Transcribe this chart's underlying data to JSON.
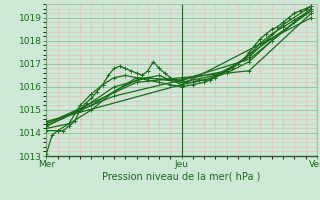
{
  "bg_color": "#cde8d5",
  "grid_minor_color": "#e8b8b8",
  "grid_major_color": "#99bb99",
  "line_color": "#1a6b1a",
  "axis_line_color": "#2a5a2a",
  "xlabel": "Pression niveau de la mer( hPa )",
  "xlabel_color": "#1a6b1a",
  "tick_color": "#1a6b1a",
  "ylim": [
    1013,
    1019.6
  ],
  "yticks": [
    1013,
    1014,
    1015,
    1016,
    1017,
    1018,
    1019
  ],
  "xlim": [
    0,
    48
  ],
  "xtick_positions": [
    0,
    24,
    48
  ],
  "xtick_labels": [
    "Mer",
    "Jeu",
    "Ven"
  ],
  "series": [
    [
      0.0,
      1013.1,
      1.0,
      1013.9,
      2.0,
      1014.1,
      3.0,
      1014.1,
      4.0,
      1014.3,
      5.0,
      1014.5,
      6.0,
      1015.0,
      7.0,
      1015.3,
      8.0,
      1015.5,
      9.0,
      1015.8,
      10.0,
      1016.1,
      11.0,
      1016.5,
      12.0,
      1016.8,
      13.0,
      1016.9,
      14.0,
      1016.8,
      15.0,
      1016.7,
      16.0,
      1016.6,
      17.0,
      1016.5,
      18.0,
      1016.7,
      19.0,
      1017.1,
      20.0,
      1016.8,
      21.0,
      1016.6,
      22.0,
      1016.4,
      23.0,
      1016.3,
      24.0,
      1016.2,
      25.0,
      1016.2,
      26.0,
      1016.2,
      27.0,
      1016.3,
      28.0,
      1016.3,
      29.0,
      1016.3,
      30.0,
      1016.5,
      31.0,
      1016.6,
      32.0,
      1016.7,
      33.0,
      1016.8,
      34.0,
      1017.0,
      35.0,
      1017.2,
      36.0,
      1017.5,
      37.0,
      1017.8,
      38.0,
      1018.1,
      39.0,
      1018.3,
      40.0,
      1018.5,
      41.0,
      1018.6,
      42.0,
      1018.8,
      43.0,
      1019.0,
      44.0,
      1019.2,
      45.0,
      1019.3,
      46.0,
      1019.4,
      47.0,
      1019.5
    ],
    [
      0.0,
      1014.1,
      2.0,
      1014.1,
      4.0,
      1014.4,
      6.0,
      1015.2,
      8.0,
      1015.7,
      10.0,
      1016.1,
      12.0,
      1016.4,
      14.0,
      1016.5,
      16.0,
      1016.4,
      18.0,
      1016.3,
      20.0,
      1016.2,
      22.0,
      1016.1,
      24.0,
      1016.0,
      26.0,
      1016.1,
      28.0,
      1016.2,
      30.0,
      1016.4,
      32.0,
      1016.7,
      34.0,
      1017.0,
      36.0,
      1017.4,
      38.0,
      1017.9,
      40.0,
      1018.3,
      42.0,
      1018.6,
      44.0,
      1018.9,
      46.0,
      1019.2
    ],
    [
      0.0,
      1014.2,
      4.0,
      1014.4,
      8.0,
      1015.0,
      12.0,
      1015.8,
      16.0,
      1016.3,
      20.0,
      1016.5,
      24.0,
      1016.1,
      28.0,
      1016.3,
      32.0,
      1016.6,
      36.0,
      1017.1,
      40.0,
      1018.0,
      44.0,
      1018.8,
      47.0,
      1019.4
    ],
    [
      0.0,
      1014.3,
      6.0,
      1015.0,
      12.0,
      1016.0,
      18.0,
      1016.4,
      24.0,
      1016.2,
      30.0,
      1016.5,
      36.0,
      1017.3,
      42.0,
      1018.7,
      47.0,
      1019.5
    ],
    [
      0.0,
      1014.3,
      8.0,
      1015.2,
      16.0,
      1016.4,
      24.0,
      1016.3,
      32.0,
      1016.7,
      40.0,
      1018.1,
      47.0,
      1019.3
    ],
    [
      0.0,
      1014.4,
      12.0,
      1015.6,
      24.0,
      1016.3,
      36.0,
      1017.2,
      47.0,
      1019.4
    ],
    [
      0.0,
      1014.4,
      16.0,
      1016.2,
      24.0,
      1016.4,
      36.0,
      1016.7,
      47.0,
      1019.2
    ],
    [
      0.0,
      1014.5,
      24.0,
      1016.1,
      47.0,
      1019.0
    ]
  ]
}
